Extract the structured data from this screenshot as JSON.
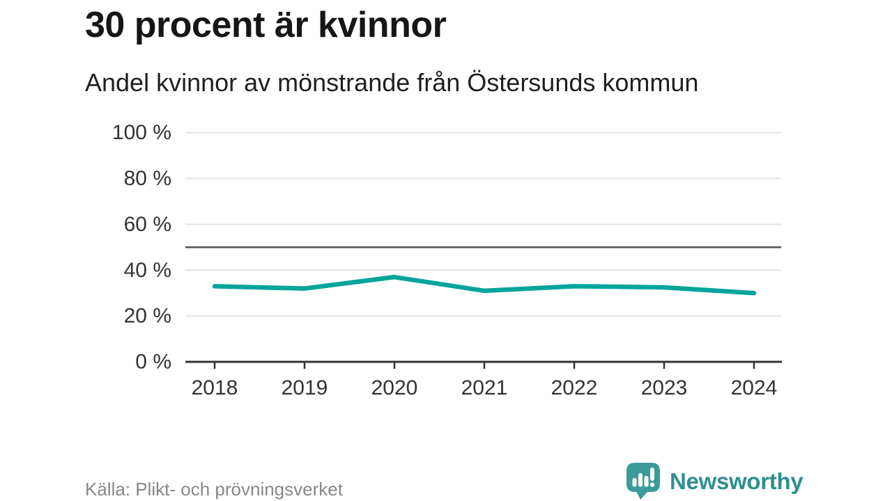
{
  "header": {
    "title": "30 procent är kvinnor",
    "subtitle": "Andel kvinnor av mönstrande från Östersunds kommun"
  },
  "footer": {
    "source": "Källa: Plikt- och prövningsverket",
    "brand_name": "Newsworthy",
    "brand_icon": "bar-chart-speech-bubble-icon"
  },
  "colors": {
    "line": "#00a49b",
    "grid": "#e3e3e3",
    "reference_line": "#55565c",
    "axis": "#333333",
    "tick_text": "#333333",
    "title_text": "#161616",
    "muted_text": "#87878c",
    "brand_icon_fill": "#3a9b9a",
    "brand_text": "#2f8f8e"
  },
  "chart_data": {
    "type": "line",
    "title": "30 procent är kvinnor",
    "subtitle": "Andel kvinnor av mönstrande från Östersunds kommun",
    "x": [
      2018,
      2019,
      2020,
      2021,
      2022,
      2023,
      2024
    ],
    "series": [
      {
        "name": "Andel kvinnor av mönstrande",
        "values": [
          33,
          32,
          37,
          31,
          33,
          32.5,
          30
        ]
      }
    ],
    "unit": "%",
    "ylim": [
      0,
      100
    ],
    "yticks": [
      0,
      20,
      40,
      60,
      80,
      100
    ],
    "ytick_suffix": " %",
    "reference_line": 50,
    "grid": true,
    "legend_position": "none",
    "xlabel": "",
    "ylabel": ""
  }
}
